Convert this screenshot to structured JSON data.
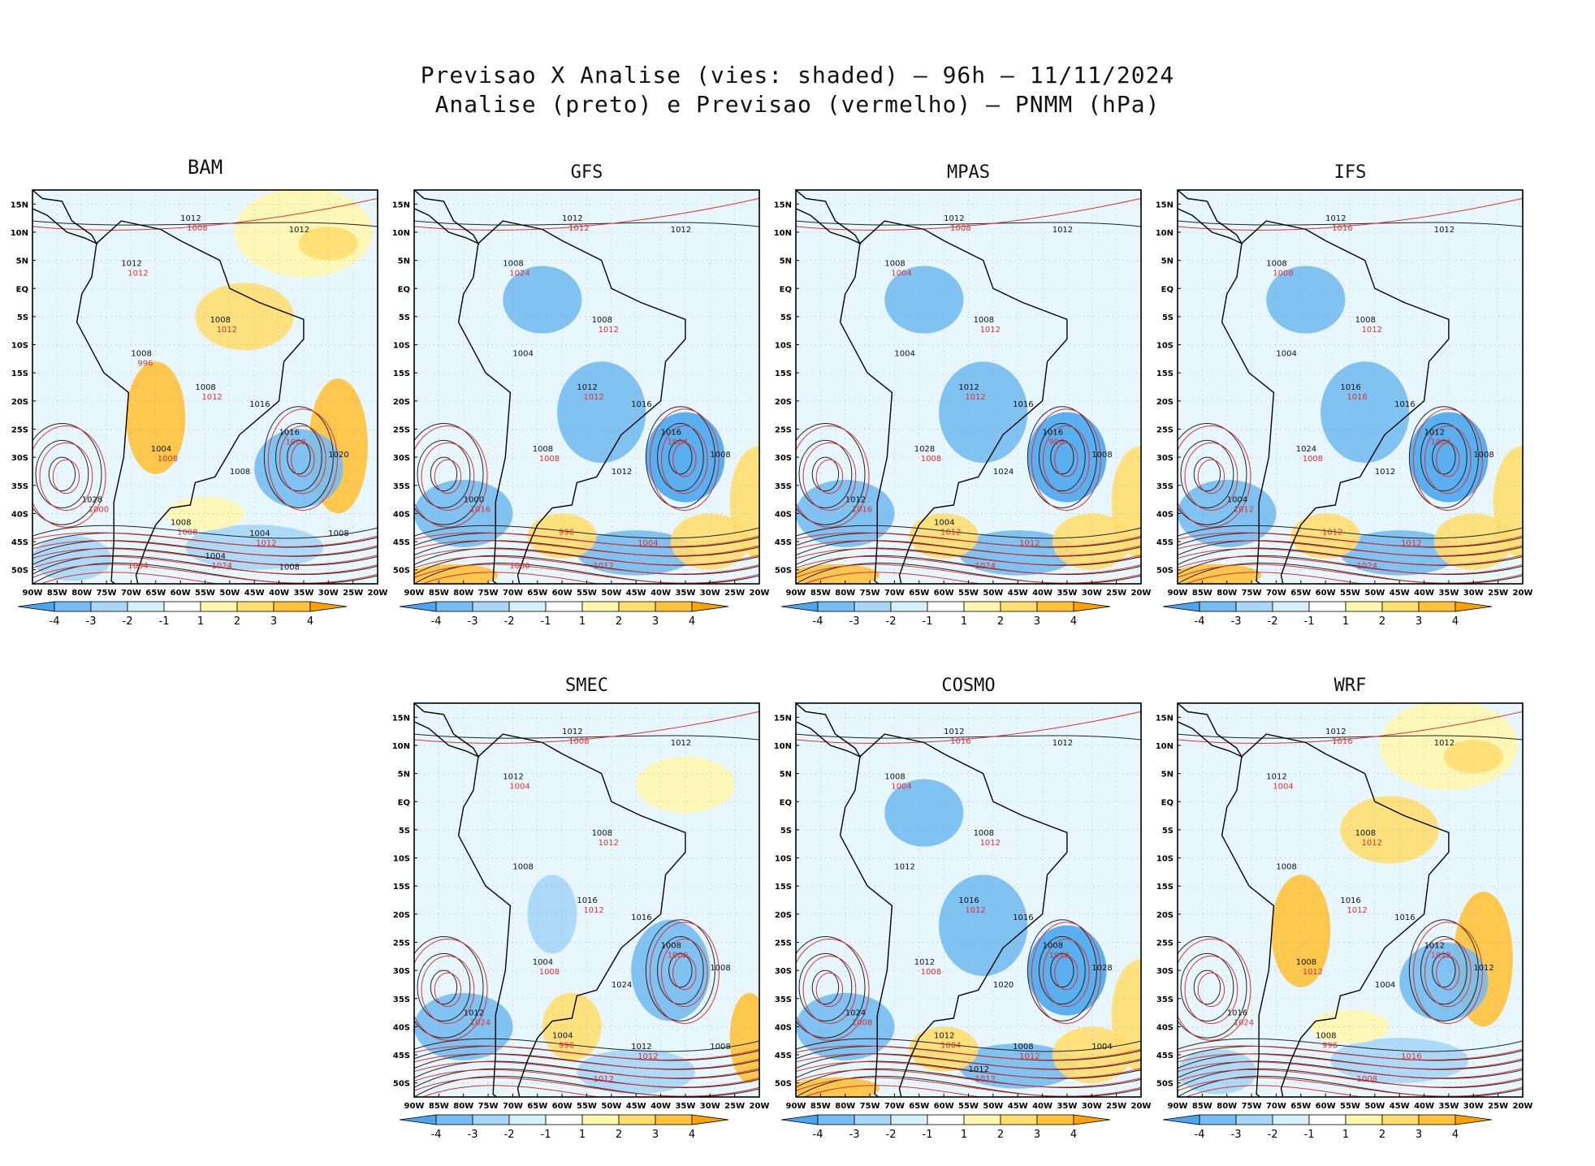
{
  "title": {
    "line1": "Previsao X Analise (vies: shaded) – 96h – 11/11/2024",
    "line2": "Analise (preto) e Previsao (vermelho) – PNMM (hPa)"
  },
  "axes": {
    "lat_labels": [
      "15N",
      "10N",
      "5N",
      "EQ",
      "5S",
      "10S",
      "15S",
      "20S",
      "25S",
      "30S",
      "35S",
      "40S",
      "45S",
      "50S"
    ],
    "lon_labels": [
      "90W",
      "85W",
      "80W",
      "75W",
      "70W",
      "65W",
      "60W",
      "55W",
      "50W",
      "45W",
      "40W",
      "35W",
      "30W",
      "25W",
      "20W"
    ]
  },
  "colorbar": {
    "labels": [
      "-4",
      "-3",
      "-2",
      "-1",
      "1",
      "2",
      "3",
      "4"
    ],
    "colors": [
      "#4aa6f0",
      "#74bcf2",
      "#a6d6f8",
      "#d4f0fb",
      "#ffffff",
      "#fff6b0",
      "#ffde70",
      "#ffc23a",
      "#ffa200"
    ]
  },
  "panels": [
    {
      "name": "BAM",
      "bias": "warm",
      "labels_black": [
        "1012",
        "1012",
        "1012",
        "1008",
        "1008",
        "1008",
        "1016",
        "1016",
        "1004",
        "1008",
        "1028",
        "1020",
        "1008",
        "1004",
        "1008",
        "1004",
        "1008"
      ],
      "labels_red": [
        "1012",
        "1008",
        "1012",
        "1008",
        "1012",
        "1000",
        "1024",
        "1012",
        "1000",
        "1008",
        "1004",
        "996"
      ]
    },
    {
      "name": "GFS",
      "bias": "cold",
      "labels_black": [
        "1012",
        "1012",
        "1008",
        "1008",
        "1004",
        "1012",
        "1016",
        "1016",
        "1008",
        "1012",
        "1000",
        "1008"
      ],
      "labels_red": [
        "1012",
        "1008",
        "1004",
        "1012",
        "1012",
        "1016",
        "1012",
        "1024",
        "1004",
        "996",
        "1000"
      ]
    },
    {
      "name": "MPAS",
      "bias": "cold",
      "labels_black": [
        "1012",
        "1012",
        "1008",
        "1008",
        "1004",
        "1012",
        "1016",
        "1016",
        "1028",
        "1024",
        "1012",
        "1008",
        "1004"
      ],
      "labels_red": [
        "1012",
        "1008",
        "1012",
        "1008",
        "1012",
        "1016",
        "1024",
        "1004",
        "996",
        "1012"
      ]
    },
    {
      "name": "IFS",
      "bias": "cold",
      "labels_black": [
        "1012",
        "1012",
        "1008",
        "1008",
        "1004",
        "1016",
        "1016",
        "1012",
        "1024",
        "1012",
        "1004",
        "1008"
      ],
      "labels_red": [
        "1012",
        "1008",
        "1012",
        "1016",
        "1016",
        "1012",
        "1024",
        "1008",
        "1004",
        "1012"
      ]
    },
    {
      "name": "SMEC",
      "bias": "mixed",
      "labels_black": [
        "1012",
        "1012",
        "1012",
        "1008",
        "1008",
        "1016",
        "1016",
        "1008",
        "1004",
        "1024",
        "1012",
        "1008",
        "1004",
        "1012",
        "1008"
      ],
      "labels_red": [
        "1012",
        "1008",
        "1012",
        "1008",
        "1012",
        "1024",
        "1012",
        "1004",
        "1000",
        "996"
      ]
    },
    {
      "name": "COSMO",
      "bias": "cold",
      "labels_black": [
        "1012",
        "1012",
        "1008",
        "1008",
        "1012",
        "1016",
        "1016",
        "1008",
        "1012",
        "1020",
        "1024",
        "1028",
        "1012",
        "1008",
        "1004",
        "1012"
      ],
      "labels_red": [
        "1012",
        "1008",
        "1012",
        "1016",
        "1012",
        "1008",
        "1012",
        "1004",
        "1016",
        "1004"
      ]
    },
    {
      "name": "WRF",
      "bias": "warm",
      "labels_black": [
        "1012",
        "1012",
        "1012",
        "1008",
        "1008",
        "1016",
        "1016",
        "1012",
        "1008",
        "1004",
        "1016",
        "1012",
        "1008"
      ],
      "labels_red": [
        "1012",
        "1012",
        "1016",
        "1016",
        "1012",
        "1024",
        "1008",
        "1004",
        "1012",
        "996"
      ]
    }
  ]
}
